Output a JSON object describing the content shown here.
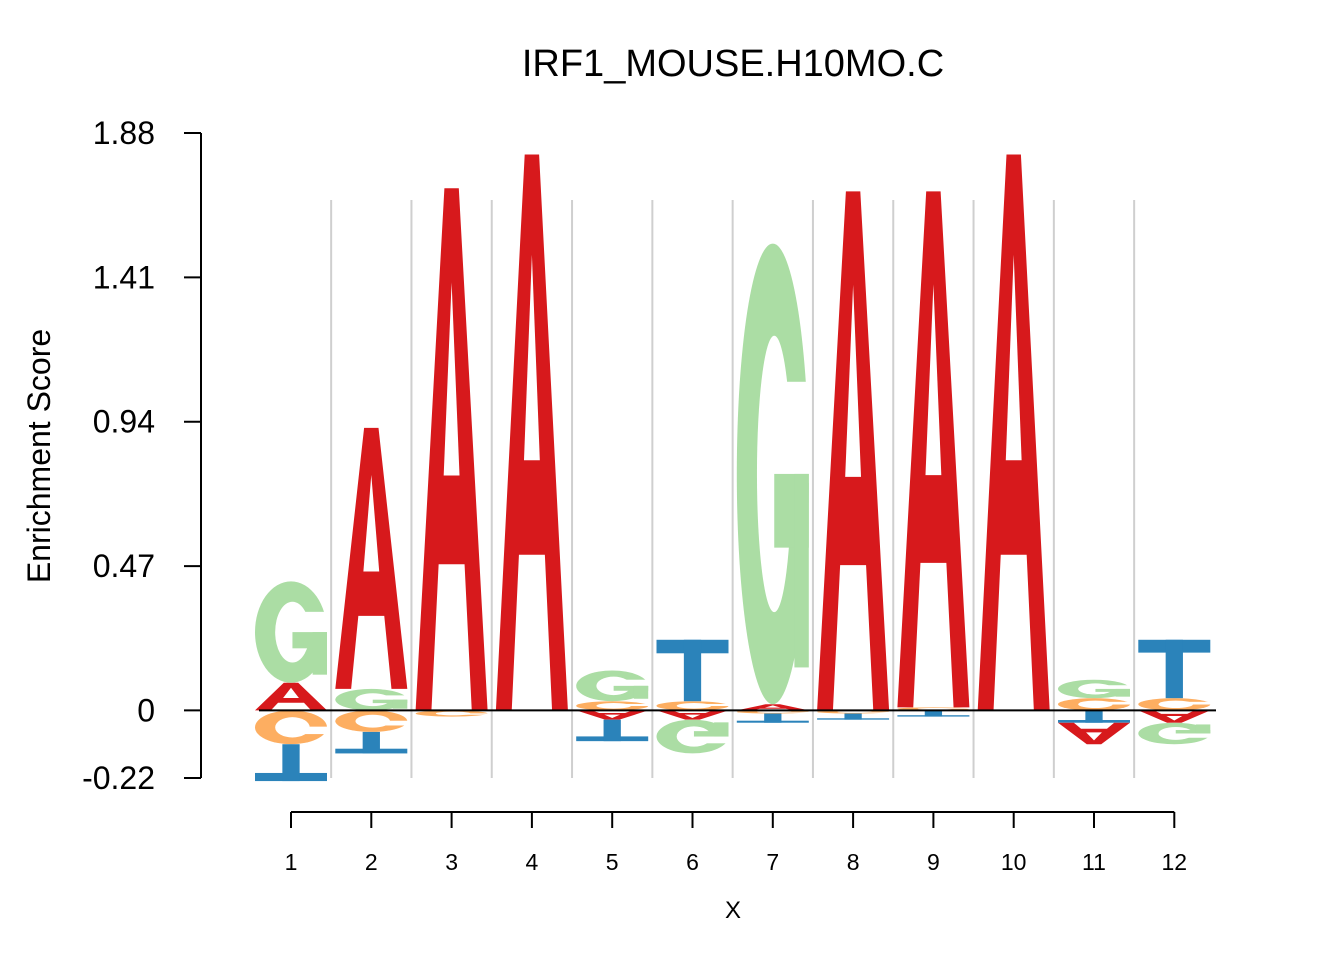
{
  "chart_data": {
    "type": "sequence-logo",
    "title": "IRF1_MOUSE.H10MO.C",
    "xlabel": "X",
    "ylabel": "Enrichment Score",
    "ylim": [
      -0.22,
      1.88
    ],
    "yticks": [
      "1.88",
      "1.41",
      "0.94",
      "0.47",
      "0",
      "-0.22"
    ],
    "positions": [
      "1",
      "2",
      "3",
      "4",
      "5",
      "6",
      "7",
      "8",
      "9",
      "10",
      "11",
      "12"
    ],
    "colors": {
      "A": "#d7191c",
      "C": "#fdae61",
      "G": "#abdda4",
      "T": "#2b83ba"
    },
    "columns": [
      {
        "pos": "1",
        "positive": [
          [
            "A",
            0.09
          ],
          [
            "G",
            0.33
          ]
        ],
        "negative": [
          [
            "C",
            0.11
          ],
          [
            "T",
            0.12
          ]
        ]
      },
      {
        "pos": "2",
        "positive": [
          [
            "G",
            0.07
          ],
          [
            "A",
            0.85
          ]
        ],
        "negative": [
          [
            "C",
            0.07
          ],
          [
            "T",
            0.07
          ]
        ]
      },
      {
        "pos": "3",
        "positive": [
          [
            "A",
            1.7
          ]
        ],
        "negative": [
          [
            "C",
            0.02
          ]
        ]
      },
      {
        "pos": "4",
        "positive": [
          [
            "A",
            1.81
          ]
        ],
        "negative": []
      },
      {
        "pos": "5",
        "positive": [
          [
            "C",
            0.03
          ],
          [
            "G",
            0.1
          ]
        ],
        "negative": [
          [
            "A",
            0.03
          ],
          [
            "T",
            0.07
          ]
        ]
      },
      {
        "pos": "6",
        "positive": [
          [
            "C",
            0.03
          ],
          [
            "T",
            0.2
          ]
        ],
        "negative": [
          [
            "A",
            0.03
          ],
          [
            "G",
            0.11
          ]
        ]
      },
      {
        "pos": "7",
        "positive": [
          [
            "A",
            0.02
          ],
          [
            "G",
            1.5
          ]
        ],
        "negative": [
          [
            "C",
            0.01
          ],
          [
            "T",
            0.03
          ]
        ]
      },
      {
        "pos": "8",
        "positive": [
          [
            "A",
            1.69
          ]
        ],
        "negative": [
          [
            "C",
            0.01
          ],
          [
            "T",
            0.02
          ]
        ]
      },
      {
        "pos": "9",
        "positive": [
          [
            "C",
            0.01
          ],
          [
            "A",
            1.68
          ]
        ],
        "negative": [
          [
            "T",
            0.02
          ]
        ]
      },
      {
        "pos": "10",
        "positive": [
          [
            "A",
            1.81
          ]
        ],
        "negative": []
      },
      {
        "pos": "11",
        "positive": [
          [
            "C",
            0.04
          ],
          [
            "G",
            0.06
          ]
        ],
        "negative": [
          [
            "T",
            0.04
          ],
          [
            "A",
            0.07
          ]
        ]
      },
      {
        "pos": "12",
        "positive": [
          [
            "C",
            0.04
          ],
          [
            "T",
            0.19
          ]
        ],
        "negative": [
          [
            "A",
            0.04
          ],
          [
            "G",
            0.07
          ]
        ]
      }
    ]
  }
}
